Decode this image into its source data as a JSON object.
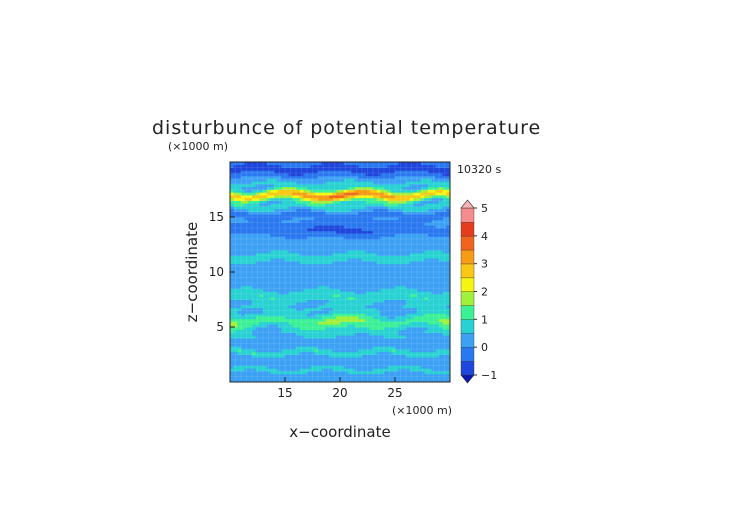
{
  "chart_data": {
    "type": "heatmap",
    "title": "disturbunce of potential temperature",
    "time_label": "10320 s",
    "xlabel": "x−coordinate",
    "ylabel": "z−coordinate",
    "x_unit": "(×1000 m)",
    "y_unit": "(×1000 m)",
    "xlim": [
      10,
      30
    ],
    "ylim": [
      0,
      20
    ],
    "x_ticks": [
      15,
      20,
      25
    ],
    "y_ticks": [
      5,
      10,
      15
    ],
    "colorbar": {
      "ticks": [
        -1,
        0,
        1,
        2,
        3,
        4,
        5
      ],
      "levels": [
        -1,
        -0.5,
        0,
        0.5,
        1,
        1.5,
        2,
        2.5,
        3,
        3.5,
        4,
        4.5,
        5
      ],
      "colors": [
        "#0a16b4",
        "#1e46dc",
        "#2a78f0",
        "#3ca0f5",
        "#28d2d2",
        "#3cf096",
        "#a0f03c",
        "#f5f514",
        "#fac814",
        "#f59b14",
        "#f0641e",
        "#e63c1e",
        "#f58c8c",
        "#ffb4b4"
      ],
      "extend": "both"
    },
    "bands": [
      {
        "z": 0.3,
        "value": 0.2,
        "width": 0.3
      },
      {
        "z": 1.1,
        "value": 0.75,
        "width": 0.25
      },
      {
        "z": 1.9,
        "value": 0.1,
        "width": 0.25
      },
      {
        "z": 2.7,
        "value": 0.9,
        "width": 0.3
      },
      {
        "z": 3.6,
        "value": 0.2,
        "width": 0.35
      },
      {
        "z": 4.4,
        "value": 0.4,
        "width": 0.4
      },
      {
        "z": 5.5,
        "value": 1.3,
        "width": 0.7
      },
      {
        "z": 6.7,
        "value": 0.4,
        "width": 0.4
      },
      {
        "z": 7.8,
        "value": 0.9,
        "width": 0.6
      },
      {
        "z": 9.3,
        "value": 0.2,
        "width": 0.6
      },
      {
        "z": 11.3,
        "value": 0.6,
        "width": 0.6
      },
      {
        "z": 12.9,
        "value": 0.2,
        "width": 0.5
      },
      {
        "z": 13.8,
        "value": -0.3,
        "width": 0.5
      },
      {
        "z": 15.2,
        "value": -0.3,
        "width": 0.35
      },
      {
        "z": 16.0,
        "value": 0.8,
        "width": 0.35
      },
      {
        "z": 17.0,
        "value": 2.8,
        "width": 0.45
      },
      {
        "z": 18.0,
        "value": 0.5,
        "width": 0.4
      },
      {
        "z": 19.4,
        "value": -0.8,
        "width": 0.6
      }
    ]
  }
}
